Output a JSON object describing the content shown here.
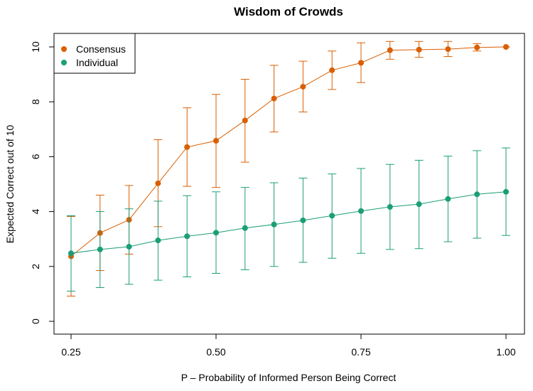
{
  "chart_data": {
    "type": "line",
    "title": "Wisdom of Crowds",
    "xlabel": "P –  Probability of Informed Person Being Correct",
    "ylabel": "Expected Correct out of 10",
    "xlim": [
      0.25,
      1.0
    ],
    "ylim": [
      0,
      10
    ],
    "x_ticks": [
      0.25,
      0.5,
      0.75,
      1.0
    ],
    "x_tick_labels": [
      "0.25",
      "0.50",
      "0.75",
      "1.00"
    ],
    "y_ticks": [
      0,
      2,
      4,
      6,
      8,
      10
    ],
    "y_tick_labels": [
      "0",
      "2",
      "4",
      "6",
      "8",
      "10"
    ],
    "grid": false,
    "legend_position": "top-left",
    "x": [
      0.25,
      0.3,
      0.35,
      0.4,
      0.45,
      0.5,
      0.55,
      0.6,
      0.65,
      0.7,
      0.75,
      0.8,
      0.85,
      0.9,
      0.95,
      1.0
    ],
    "series": [
      {
        "name": "Consensus",
        "color": "#D95F02",
        "values": [
          2.37,
          3.22,
          3.7,
          5.03,
          6.35,
          6.58,
          7.32,
          8.12,
          8.55,
          9.15,
          9.42,
          9.88,
          9.9,
          9.92,
          9.98,
          10.0
        ],
        "err_low": [
          0.92,
          1.85,
          2.45,
          3.45,
          4.92,
          4.88,
          5.8,
          6.9,
          7.63,
          8.45,
          8.7,
          9.55,
          9.62,
          9.65,
          9.85,
          10.0
        ],
        "err_high": [
          3.82,
          4.6,
          4.95,
          6.62,
          7.78,
          8.27,
          8.82,
          9.33,
          9.48,
          9.85,
          10.15,
          10.2,
          10.2,
          10.2,
          10.12,
          10.0
        ]
      },
      {
        "name": "Individual",
        "color": "#1B9E77",
        "values": [
          2.48,
          2.62,
          2.72,
          2.95,
          3.1,
          3.23,
          3.4,
          3.53,
          3.68,
          3.85,
          4.02,
          4.17,
          4.27,
          4.46,
          4.63,
          4.72
        ],
        "err_low": [
          1.1,
          1.23,
          1.35,
          1.5,
          1.62,
          1.75,
          1.88,
          2.0,
          2.15,
          2.3,
          2.48,
          2.62,
          2.65,
          2.9,
          3.03,
          3.13
        ],
        "err_high": [
          3.85,
          4.0,
          4.1,
          4.38,
          4.58,
          4.72,
          4.88,
          5.05,
          5.22,
          5.37,
          5.57,
          5.72,
          5.87,
          6.02,
          6.22,
          6.32
        ]
      }
    ]
  }
}
